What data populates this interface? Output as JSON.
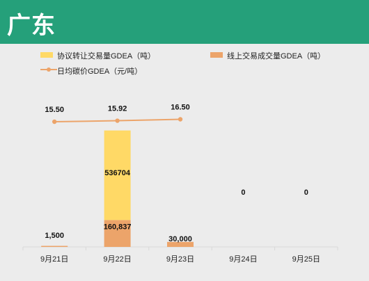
{
  "header": {
    "title": "广东",
    "color": "#25a07a"
  },
  "legend": {
    "series1": "协议转让交易量GDEA（吨）",
    "series2": "线上交易成交量GDEA（吨）",
    "series3": "日均碳价GDEA（元/吨）"
  },
  "chart_data": {
    "type": "bar",
    "categories": [
      "9月21日",
      "9月22日",
      "9月23日",
      "9月24日",
      "9月25日"
    ],
    "series": [
      {
        "name": "协议转让交易量GDEA（吨）",
        "kind": "bar",
        "stacked": true,
        "color": "#ffd966",
        "values": [
          0,
          536704,
          0,
          0,
          0
        ],
        "labels": [
          "",
          "536704",
          "",
          "",
          ""
        ]
      },
      {
        "name": "线上交易成交量GDEA（吨）",
        "kind": "bar",
        "stacked": true,
        "color": "#eca46a",
        "values": [
          1500,
          160837,
          30000,
          0,
          0
        ],
        "labels": [
          "1,500",
          "160,837",
          "30,000",
          "0",
          "0"
        ]
      },
      {
        "name": "日均碳价GDEA（元/吨）",
        "kind": "line",
        "color": "#eca46a",
        "values": [
          15.5,
          15.92,
          16.5,
          null,
          null
        ],
        "labels": [
          "15.50",
          "15.92",
          "16.50",
          "",
          ""
        ]
      }
    ],
    "grid": false,
    "legend_position": "top"
  }
}
